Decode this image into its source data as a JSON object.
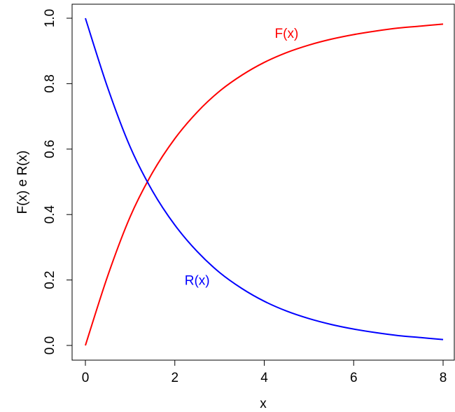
{
  "chart_data": {
    "type": "line",
    "title": "",
    "xlabel": "x",
    "ylabel": "F(x) e R(x)",
    "xlim": [
      0,
      8
    ],
    "ylim": [
      0,
      1
    ],
    "x_ticks": [
      0,
      2,
      4,
      6,
      8
    ],
    "y_ticks": [
      0,
      0.2,
      0.4,
      0.6,
      0.8,
      1
    ],
    "x_tick_labels": [
      "0",
      "2",
      "4",
      "6",
      "8"
    ],
    "y_tick_labels": [
      "0.0",
      "0.2",
      "0.4",
      "0.6",
      "0.8",
      "1.0"
    ],
    "grid": false,
    "x": [
      0,
      0.5,
      1,
      1.5,
      2,
      2.5,
      3,
      3.5,
      4,
      4.5,
      5,
      5.5,
      6,
      6.5,
      7,
      7.5,
      8
    ],
    "series": [
      {
        "name": "F(x)",
        "color": "#ff0000",
        "values": [
          0,
          0.213,
          0.393,
          0.528,
          0.632,
          0.713,
          0.777,
          0.826,
          0.865,
          0.895,
          0.918,
          0.936,
          0.95,
          0.961,
          0.97,
          0.976,
          0.982
        ]
      },
      {
        "name": "R(x)",
        "color": "#0000ff",
        "values": [
          1,
          0.787,
          0.607,
          0.472,
          0.368,
          0.287,
          0.223,
          0.174,
          0.135,
          0.105,
          0.082,
          0.064,
          0.05,
          0.039,
          0.03,
          0.024,
          0.018
        ]
      }
    ],
    "annotations": [
      {
        "text": "F(x)",
        "x": 4.5,
        "y": 0.955,
        "color": "#ff0000"
      },
      {
        "text": "R(x)",
        "x": 2.5,
        "y": 0.2,
        "color": "#0000ff"
      }
    ]
  }
}
